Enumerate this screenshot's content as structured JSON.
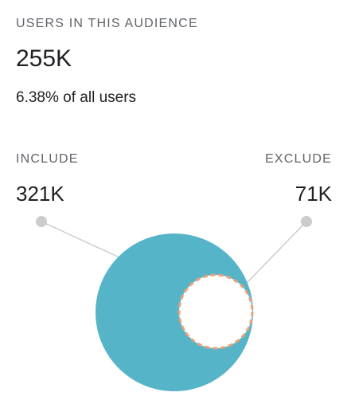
{
  "summary": {
    "label": "USERS IN THIS AUDIENCE",
    "value": "255K",
    "percent_text": "6.38% of all users"
  },
  "include": {
    "label": "INCLUDE",
    "value": "321K"
  },
  "exclude": {
    "label": "EXCLUDE",
    "value": "71K"
  },
  "colors": {
    "include_fill": "#56b4c9",
    "exclude_stroke": "#e8a27a",
    "connector": "#cccccc",
    "connector_dot": "#cccccc"
  }
}
